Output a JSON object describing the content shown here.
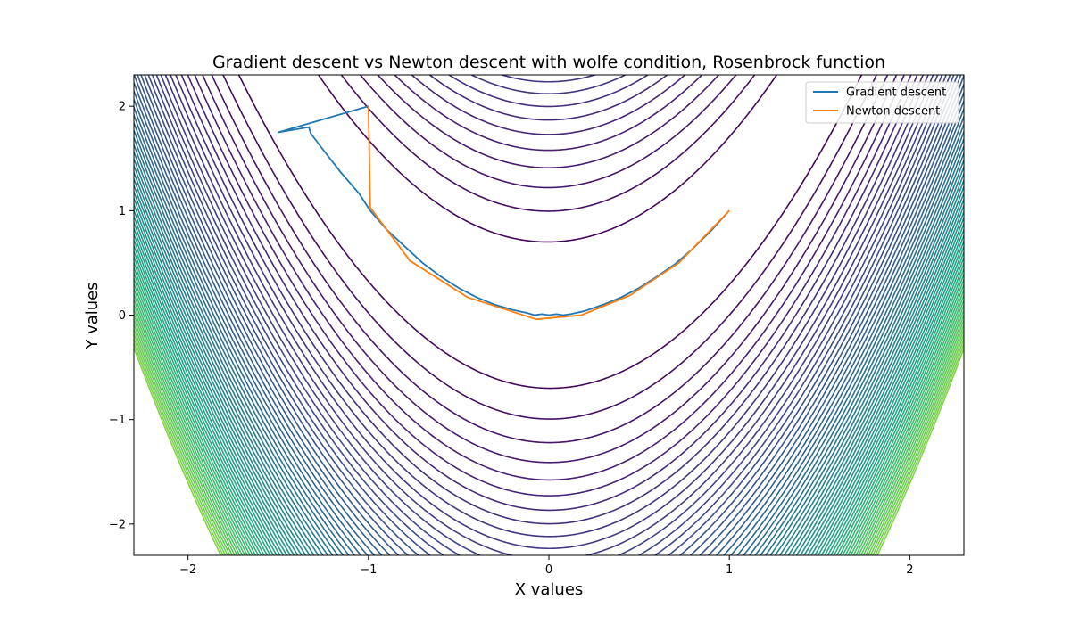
{
  "chart_data": {
    "type": "line",
    "title": "Gradient descent vs Newton descent with wolfe condition, Rosenbrock function",
    "xlabel": "X values",
    "ylabel": "Y values",
    "xlim": [
      -2.3,
      2.3
    ],
    "ylim": [
      -2.3,
      2.3
    ],
    "x_ticks": [
      -2,
      -1,
      0,
      1,
      2
    ],
    "y_ticks": [
      -2,
      -1,
      0,
      1,
      2
    ],
    "x_tick_labels": [
      "−2",
      "−1",
      "0",
      "1",
      "2"
    ],
    "y_tick_labels": [
      "−2",
      "−1",
      "0",
      "1",
      "2"
    ],
    "legend_position": "top-right",
    "background": "contour",
    "contour_colormap": "viridis",
    "series": [
      {
        "name": "Gradient descent",
        "color": "#1f77b4",
        "x": [
          -1.0,
          -1.5,
          -1.33,
          -1.32,
          -1.25,
          -1.15,
          -1.05,
          -0.99,
          -0.9,
          -0.8,
          -0.7,
          -0.6,
          -0.5,
          -0.4,
          -0.3,
          -0.2,
          -0.12,
          -0.08,
          -0.04,
          0.0,
          0.04,
          0.08,
          0.12,
          0.2,
          0.3,
          0.4,
          0.5,
          0.6,
          0.7,
          0.8,
          0.9,
          1.0
        ],
        "y": [
          2.0,
          1.75,
          1.8,
          1.74,
          1.58,
          1.36,
          1.16,
          1.0,
          0.82,
          0.66,
          0.5,
          0.37,
          0.26,
          0.17,
          0.1,
          0.05,
          0.02,
          0.0,
          0.01,
          0.0,
          0.01,
          0.0,
          0.01,
          0.04,
          0.1,
          0.17,
          0.26,
          0.37,
          0.49,
          0.64,
          0.81,
          1.0
        ]
      },
      {
        "name": "Newton descent",
        "color": "#ff7f0e",
        "x": [
          -1.0,
          -0.99,
          -0.77,
          -0.45,
          -0.07,
          0.18,
          0.45,
          0.72,
          1.0
        ],
        "y": [
          2.0,
          1.03,
          0.52,
          0.17,
          -0.04,
          0.0,
          0.19,
          0.5,
          1.0
        ]
      }
    ]
  }
}
